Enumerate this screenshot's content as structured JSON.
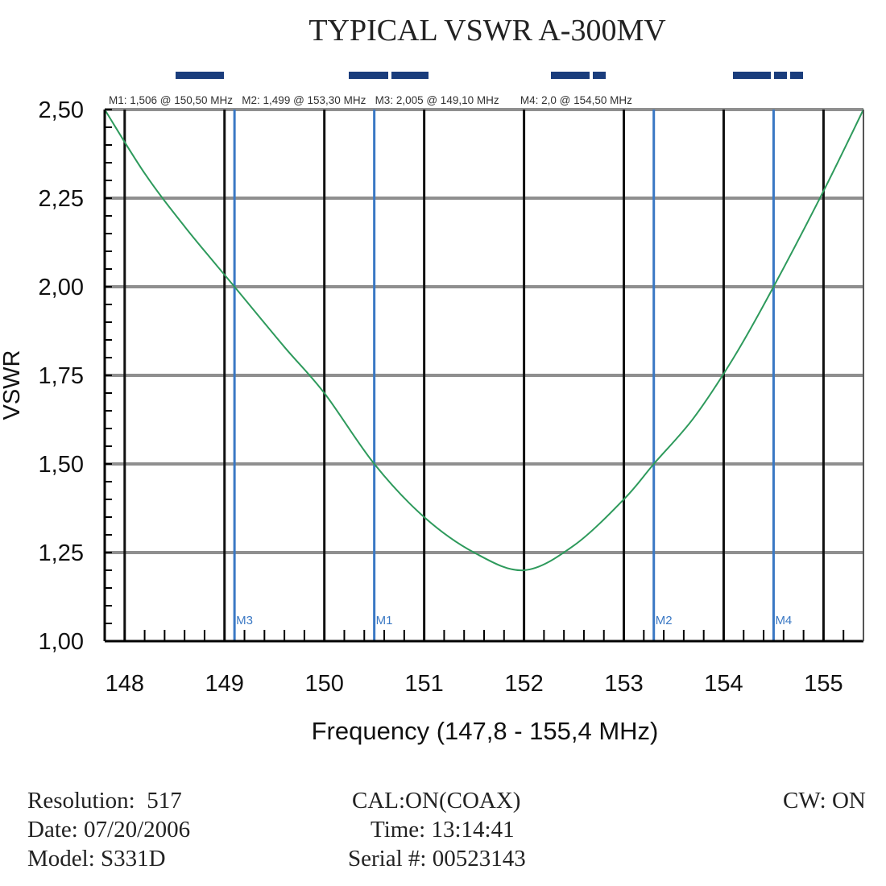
{
  "colors": {
    "curve": "#2e9a5c",
    "marker": "#3a78c4",
    "bar": "#1a3d7c",
    "axis": "#000000",
    "hgrid": "#8f8f8f",
    "vgrid": "#111111"
  },
  "chart_data": {
    "type": "line",
    "title": "TYPICAL VSWR A-300MV",
    "xlabel": "Frequency (147,8 - 155,4 MHz)",
    "ylabel": "VSWR",
    "xlim": [
      147.8,
      155.4
    ],
    "ylim": [
      1.0,
      2.5
    ],
    "x_ticks": [
      148,
      149,
      150,
      151,
      152,
      153,
      154,
      155
    ],
    "x_tick_labels": [
      "148",
      "149",
      "150",
      "151",
      "152",
      "153",
      "154",
      "155"
    ],
    "y_ticks": [
      1.0,
      1.25,
      1.5,
      1.75,
      2.0,
      2.25,
      2.5
    ],
    "y_tick_labels": [
      "1,00",
      "1,25",
      "1,50",
      "1,75",
      "2,00",
      "2,25",
      "2,50"
    ],
    "grid": true,
    "series": [
      {
        "x": [
          147.8,
          148.2,
          148.6,
          149.1,
          149.6,
          150.0,
          150.5,
          151.0,
          151.5,
          152.0,
          152.5,
          153.0,
          153.3,
          153.7,
          154.1,
          154.5,
          155.0,
          155.4
        ],
        "y": [
          2.5,
          2.32,
          2.17,
          2.0,
          1.83,
          1.7,
          1.5,
          1.35,
          1.25,
          1.2,
          1.27,
          1.4,
          1.5,
          1.63,
          1.8,
          2.0,
          2.27,
          2.5
        ]
      }
    ],
    "markers": [
      {
        "label": "M3",
        "x": 149.1
      },
      {
        "label": "M1",
        "x": 150.5
      },
      {
        "label": "M2",
        "x": 153.3
      },
      {
        "label": "M4",
        "x": 154.5
      }
    ],
    "marker_readout": "M1: 1,506 @ 150,50 MHz   M2: 1,499 @ 153,30 MHz   M3: 2,005 @ 149,10 MHz       M4: 2,0 @ 154,50 MHz"
  },
  "footer": {
    "resolution": "Resolution:  517",
    "date": "Date: 07/20/2006",
    "model": "Model: S331D",
    "cal": "CAL:ON(COAX)",
    "time": "Time: 13:14:41",
    "serial": "Serial #: 00523143",
    "cw": "CW: ON"
  }
}
